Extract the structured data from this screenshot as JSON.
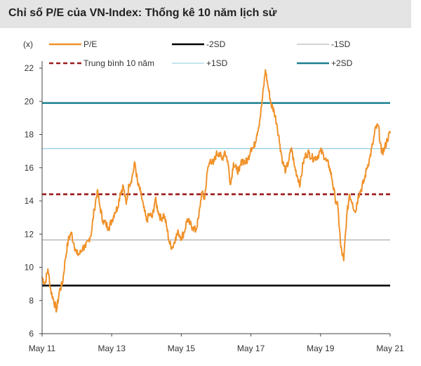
{
  "chart_data": {
    "type": "line",
    "title": "Chỉ số P/E của VN-Index: Thống kê 10 năm lịch sử",
    "ylabel": "(x)",
    "xlabel": "",
    "ylim": [
      6,
      22
    ],
    "yticks": [
      6,
      8,
      10,
      12,
      14,
      16,
      18,
      20,
      22
    ],
    "xlim": [
      "2011-05",
      "2021-05"
    ],
    "xticks": [
      {
        "date": "2011-05",
        "label": "May 11"
      },
      {
        "date": "2013-05",
        "label": "May 13"
      },
      {
        "date": "2015-05",
        "label": "May 15"
      },
      {
        "date": "2017-05",
        "label": "May 17"
      },
      {
        "date": "2019-05",
        "label": "May 19"
      },
      {
        "date": "2021-05",
        "label": "May 21"
      }
    ],
    "grid": false,
    "legend_position": "top",
    "reference_lines": [
      {
        "name": "-2SD",
        "value": 8.9,
        "color": "#000000",
        "style": "solid",
        "weight": "heavy"
      },
      {
        "name": "-1SD",
        "value": 11.65,
        "color": "#a6a6a6",
        "style": "solid",
        "weight": "thin"
      },
      {
        "name": "Trung bình 10 năm",
        "value": 14.4,
        "color": "#9b1c1c",
        "style": "dashed",
        "weight": "heavy"
      },
      {
        "name": "+1SD",
        "value": 17.15,
        "color": "#8ecae6",
        "style": "solid",
        "weight": "thin"
      },
      {
        "name": "+2SD",
        "value": 19.9,
        "color": "#1b7f8f",
        "style": "solid",
        "weight": "heavy"
      }
    ],
    "series": [
      {
        "name": "P/E",
        "color": "#f0922b",
        "x": [
          "2011-05",
          "2011-06",
          "2011-07",
          "2011-08",
          "2011-09",
          "2011-10",
          "2011-11",
          "2011-12",
          "2012-01",
          "2012-02",
          "2012-03",
          "2012-04",
          "2012-05",
          "2012-06",
          "2012-07",
          "2012-08",
          "2012-09",
          "2012-10",
          "2012-11",
          "2012-12",
          "2013-01",
          "2013-02",
          "2013-03",
          "2013-04",
          "2013-05",
          "2013-06",
          "2013-07",
          "2013-08",
          "2013-09",
          "2013-10",
          "2013-11",
          "2013-12",
          "2014-01",
          "2014-02",
          "2014-03",
          "2014-04",
          "2014-05",
          "2014-06",
          "2014-07",
          "2014-08",
          "2014-09",
          "2014-10",
          "2014-11",
          "2014-12",
          "2015-01",
          "2015-02",
          "2015-03",
          "2015-04",
          "2015-05",
          "2015-06",
          "2015-07",
          "2015-08",
          "2015-09",
          "2015-10",
          "2015-11",
          "2015-12",
          "2016-01",
          "2016-02",
          "2016-03",
          "2016-04",
          "2016-05",
          "2016-06",
          "2016-07",
          "2016-08",
          "2016-09",
          "2016-10",
          "2016-11",
          "2016-12",
          "2017-01",
          "2017-02",
          "2017-03",
          "2017-04",
          "2017-05",
          "2017-06",
          "2017-07",
          "2017-08",
          "2017-09",
          "2017-10",
          "2017-11",
          "2017-12",
          "2018-01",
          "2018-02",
          "2018-03",
          "2018-04",
          "2018-05",
          "2018-06",
          "2018-07",
          "2018-08",
          "2018-09",
          "2018-10",
          "2018-11",
          "2018-12",
          "2019-01",
          "2019-02",
          "2019-03",
          "2019-04",
          "2019-05",
          "2019-06",
          "2019-07",
          "2019-08",
          "2019-09",
          "2019-10",
          "2019-11",
          "2019-12",
          "2020-01",
          "2020-02",
          "2020-03",
          "2020-04",
          "2020-05",
          "2020-06",
          "2020-07",
          "2020-08",
          "2020-09",
          "2020-10",
          "2020-11",
          "2020-12",
          "2021-01",
          "2021-02",
          "2021-03",
          "2021-04",
          "2021-05"
        ],
        "values": [
          9.4,
          9.0,
          9.9,
          8.6,
          8.0,
          7.4,
          8.6,
          9.0,
          10.5,
          11.6,
          12.1,
          11.4,
          10.8,
          10.8,
          11.2,
          11.2,
          11.6,
          12.1,
          13.5,
          14.6,
          13.6,
          12.8,
          12.6,
          12.4,
          12.8,
          13.3,
          13.6,
          14.5,
          14.9,
          13.8,
          15.0,
          15.4,
          16.3,
          15.0,
          14.5,
          13.6,
          12.8,
          13.2,
          13.0,
          14.1,
          13.4,
          12.9,
          13.2,
          12.4,
          11.4,
          11.2,
          11.8,
          12.1,
          11.8,
          12.1,
          12.9,
          12.6,
          12.4,
          12.2,
          13.0,
          14.5,
          14.1,
          15.8,
          16.5,
          16.2,
          16.8,
          16.9,
          16.5,
          17.0,
          16.4,
          15.0,
          16.3,
          15.9,
          15.8,
          16.5,
          16.3,
          16.5,
          17.2,
          17.2,
          18.0,
          18.8,
          20.2,
          21.9,
          20.8,
          19.8,
          19.4,
          18.6,
          17.4,
          16.3,
          15.8,
          16.4,
          17.2,
          16.1,
          15.5,
          15.0,
          16.3,
          16.8,
          16.9,
          16.6,
          16.6,
          16.7,
          17.0,
          16.8,
          16.4,
          16.1,
          15.3,
          14.2,
          13.6,
          11.2,
          10.4,
          13.0,
          14.4,
          13.9,
          13.3,
          14.3,
          14.7,
          15.2,
          16.0,
          16.6,
          17.4,
          18.4,
          18.5,
          16.9,
          17.1,
          17.7,
          18.1
        ]
      }
    ]
  }
}
